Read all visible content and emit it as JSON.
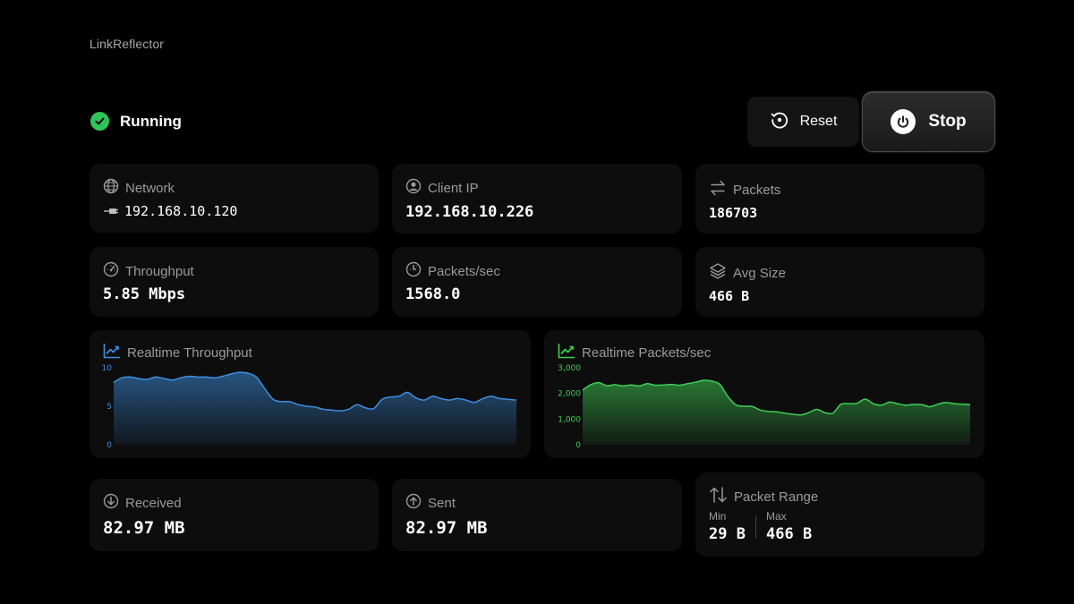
{
  "app": {
    "title": "LinkReflector"
  },
  "status": {
    "label": "Running",
    "color": "#2fc45a"
  },
  "controls": {
    "reset_label": "Reset",
    "stop_label": "Stop"
  },
  "cards": {
    "network": {
      "label": "Network",
      "value": "192.168.10.120",
      "icon": "globe-icon"
    },
    "client_ip": {
      "label": "Client IP",
      "value": "192.168.10.226",
      "icon": "user-circle-icon"
    },
    "packets": {
      "label": "Packets",
      "value": "186703",
      "icon": "arrows-exchange-icon"
    },
    "throughput": {
      "label": "Throughput",
      "value": "5.85 Mbps",
      "icon": "gauge-icon"
    },
    "packets_sec": {
      "label": "Packets/sec",
      "value": "1568.0",
      "icon": "timer-icon"
    },
    "avg_size": {
      "label": "Avg Size",
      "value": "466 B",
      "icon": "layers-icon"
    },
    "received": {
      "label": "Received",
      "value": "82.97 MB",
      "icon": "arrow-down-circle-icon"
    },
    "sent": {
      "label": "Sent",
      "value": "82.97 MB",
      "icon": "arrow-up-circle-icon"
    },
    "packet_range": {
      "label": "Packet Range",
      "min_label": "Min",
      "min_value": "29 B",
      "max_label": "Max",
      "max_value": "466 B",
      "icon": "arrows-up-down-icon"
    }
  },
  "chart_data": [
    {
      "type": "area",
      "title": "Realtime Throughput",
      "ylim": [
        0,
        10
      ],
      "yticks": [
        "0",
        "5",
        "10"
      ],
      "color": "#3d8fe0",
      "values": [
        8.1,
        8.7,
        8.8,
        8.6,
        8.5,
        8.8,
        8.6,
        8.4,
        8.7,
        8.9,
        8.8,
        8.8,
        8.7,
        8.9,
        9.2,
        9.4,
        9.3,
        8.8,
        7.3,
        5.9,
        5.6,
        5.6,
        5.2,
        5.0,
        4.9,
        4.6,
        4.5,
        4.4,
        4.6,
        5.2,
        4.8,
        4.7,
        5.9,
        6.2,
        6.3,
        6.8,
        6.1,
        5.8,
        6.3,
        6.0,
        5.8,
        6.0,
        5.8,
        5.5,
        6.0,
        6.3,
        6.0,
        5.9,
        5.8
      ]
    },
    {
      "type": "area",
      "title": "Realtime Packets/sec",
      "ylim": [
        0,
        3000
      ],
      "yticks": [
        "0",
        "1,000",
        "2,000",
        "3,000"
      ],
      "color": "#3fcf55",
      "values": [
        2130,
        2340,
        2420,
        2300,
        2340,
        2290,
        2330,
        2290,
        2380,
        2320,
        2330,
        2350,
        2320,
        2380,
        2440,
        2510,
        2480,
        2350,
        1870,
        1550,
        1500,
        1490,
        1350,
        1300,
        1280,
        1230,
        1190,
        1160,
        1250,
        1380,
        1250,
        1230,
        1580,
        1600,
        1620,
        1780,
        1600,
        1540,
        1660,
        1600,
        1540,
        1570,
        1560,
        1480,
        1580,
        1650,
        1600,
        1580,
        1570
      ]
    }
  ]
}
